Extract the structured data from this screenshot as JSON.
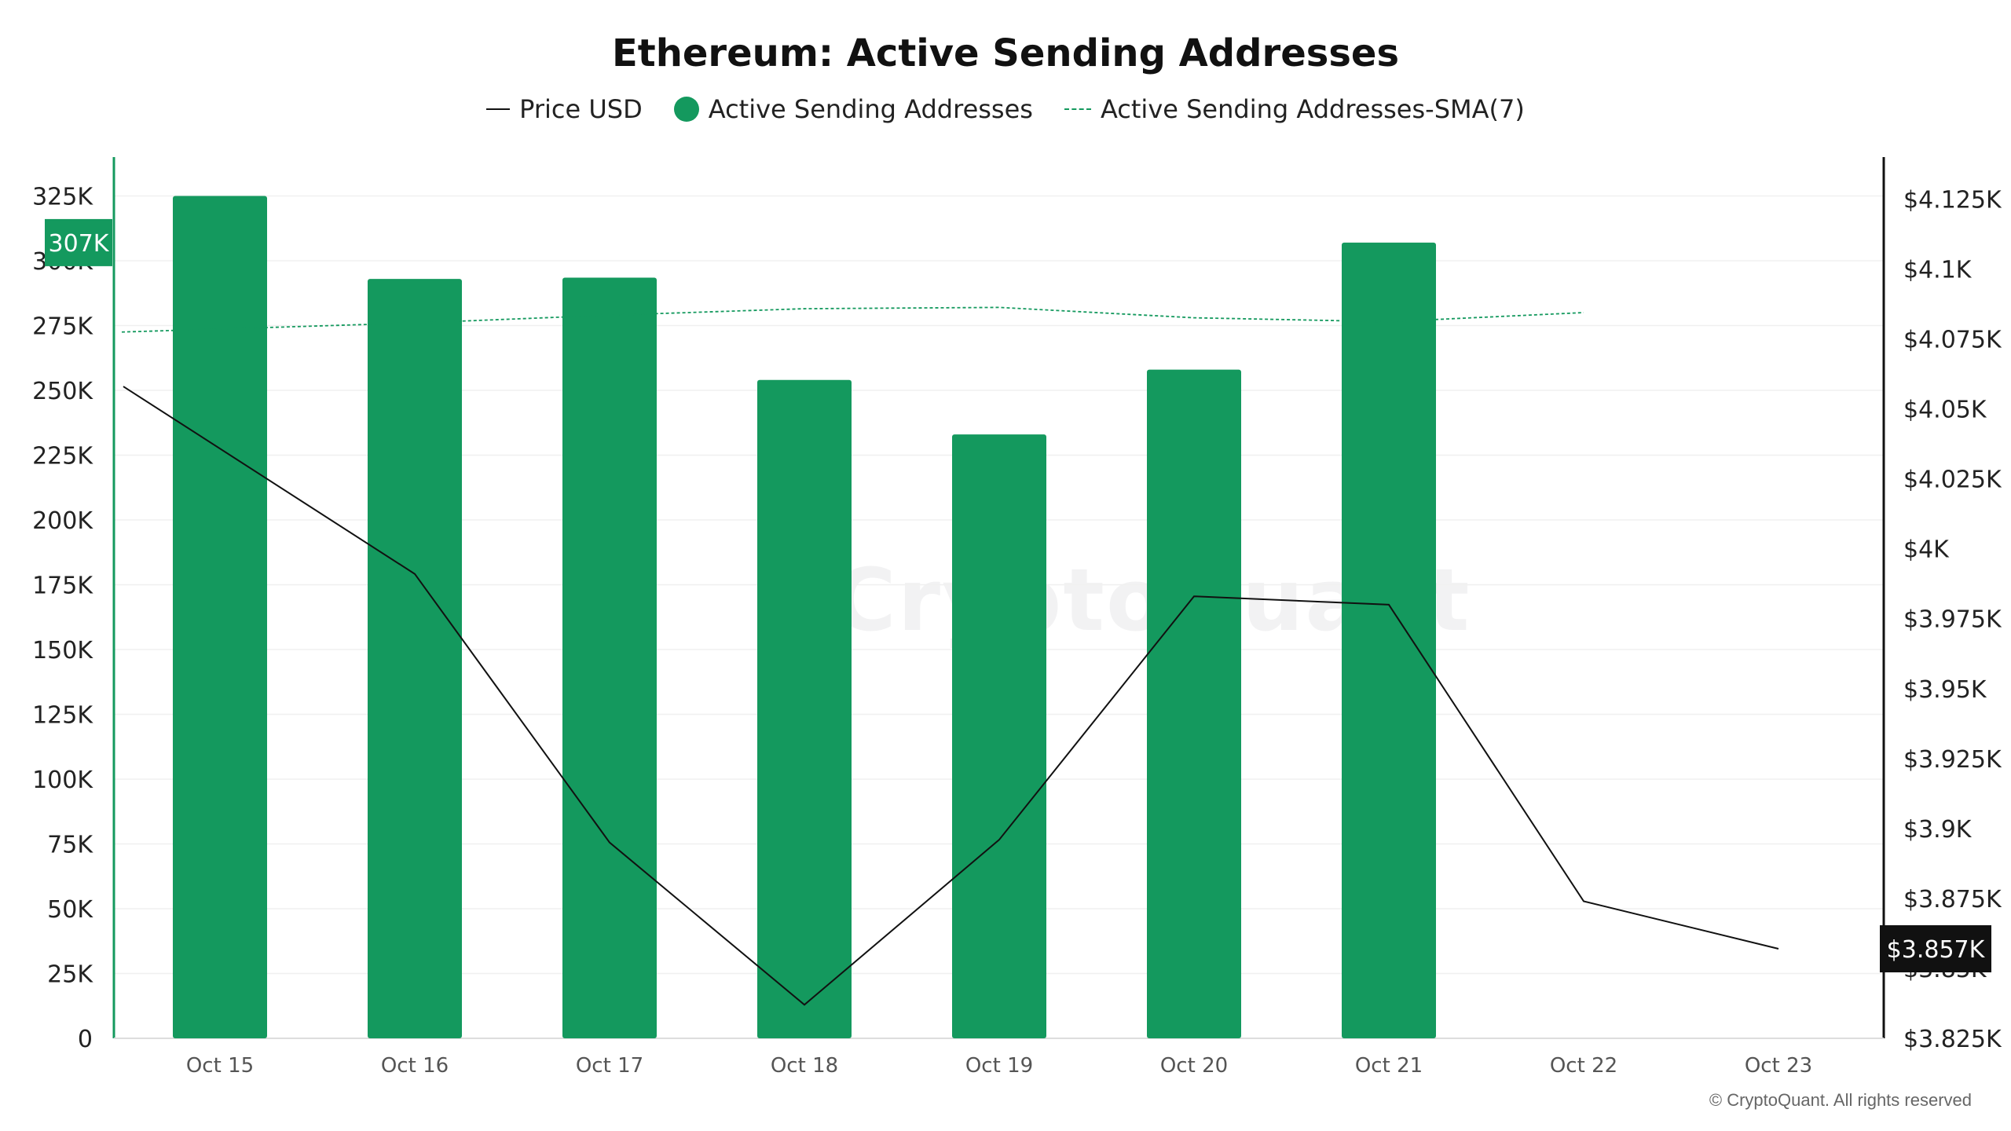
{
  "chart_data": {
    "type": "bar",
    "title": "Ethereum: Active Sending Addresses",
    "categories": [
      "Oct 15",
      "Oct 16",
      "Oct 17",
      "Oct 18",
      "Oct 19",
      "Oct 20",
      "Oct 21",
      "Oct 22",
      "Oct 23"
    ],
    "series": [
      {
        "name": "Price USD",
        "type": "line",
        "axis": "right",
        "color": "#111111",
        "values": [
          4058,
          3991,
          3895,
          3837,
          3896,
          3983,
          3980,
          3874,
          3857
        ]
      },
      {
        "name": "Active Sending Addresses",
        "type": "bar",
        "axis": "left",
        "color": "#14995e",
        "values": [
          325000,
          293000,
          293500,
          254000,
          233000,
          258000,
          307000,
          null,
          null
        ]
      },
      {
        "name": "Active Sending Addresses-SMA(7)",
        "type": "line",
        "dashed": true,
        "axis": "left",
        "color": "#14995e",
        "values": [
          272500,
          276000,
          279000,
          281500,
          282000,
          278000,
          276500,
          280000,
          null
        ]
      }
    ],
    "left_axis": {
      "ticks": [
        "0",
        "25K",
        "50K",
        "75K",
        "100K",
        "125K",
        "150K",
        "175K",
        "200K",
        "225K",
        "250K",
        "275K",
        "300K",
        "325K"
      ],
      "ylim": [
        0,
        340000
      ],
      "highlight_label": "307K"
    },
    "right_axis": {
      "ticks": [
        "$3.825K",
        "$3.85K",
        "$3.875K",
        "$3.9K",
        "$3.925K",
        "$3.95K",
        "$3.975K",
        "$4K",
        "$4.025K",
        "$4.05K",
        "$4.075K",
        "$4.1K",
        "$4.125K"
      ],
      "ylim": [
        3825,
        4140
      ],
      "highlight_label": "$3.857K"
    },
    "grid": true,
    "legend_position": "top-center",
    "watermark": "CryptoQuant",
    "copyright": "© CryptoQuant. All rights reserved"
  }
}
